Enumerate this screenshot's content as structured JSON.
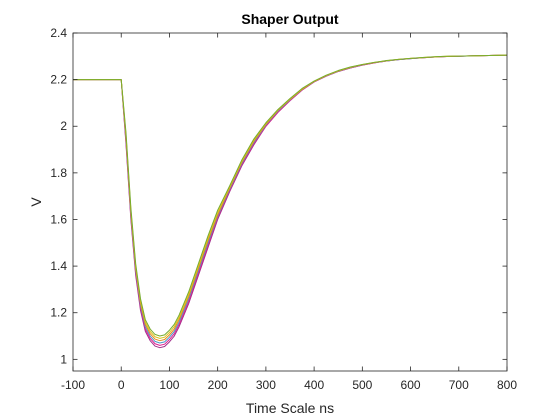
{
  "chart_data": {
    "type": "line",
    "title": "Shaper Output",
    "xlabel": "Time Scale ns",
    "ylabel": "V",
    "xlim": [
      -100,
      800
    ],
    "ylim": [
      0.95,
      2.4
    ],
    "xticks": [
      -100,
      0,
      100,
      200,
      300,
      400,
      500,
      600,
      700,
      800
    ],
    "yticks": [
      1,
      1.2,
      1.4,
      1.6,
      1.8,
      2,
      2.2,
      2.4
    ],
    "xtick_labels": [
      "-100",
      "0",
      "100",
      "200",
      "300",
      "400",
      "500",
      "600",
      "700",
      "800"
    ],
    "ytick_labels": [
      "1",
      "1.2",
      "1.4",
      "1.6",
      "1.8",
      "2",
      "2.2",
      "2.4"
    ],
    "grid": false,
    "box": true,
    "x": [
      -100,
      -50,
      0,
      10,
      20,
      30,
      40,
      50,
      60,
      70,
      80,
      90,
      100,
      110,
      120,
      140,
      160,
      180,
      200,
      225,
      250,
      275,
      300,
      325,
      350,
      375,
      400,
      425,
      450,
      475,
      500,
      525,
      550,
      575,
      600,
      625,
      650,
      675,
      700,
      725,
      750,
      775,
      800
    ],
    "series": [
      {
        "color": "#a12f8c",
        "values": [
          2.2,
          2.2,
          2.2,
          1.92,
          1.6,
          1.36,
          1.21,
          1.12,
          1.08,
          1.057,
          1.05,
          1.055,
          1.075,
          1.1,
          1.14,
          1.24,
          1.36,
          1.48,
          1.6,
          1.72,
          1.83,
          1.92,
          2.0,
          2.06,
          2.11,
          2.155,
          2.19,
          2.215,
          2.235,
          2.25,
          2.262,
          2.272,
          2.28,
          2.286,
          2.29,
          2.294,
          2.297,
          2.299,
          2.3,
          2.302,
          2.303,
          2.304,
          2.305
        ]
      },
      {
        "color": "#e0208f",
        "values": [
          2.2,
          2.2,
          2.2,
          1.93,
          1.61,
          1.37,
          1.22,
          1.13,
          1.09,
          1.067,
          1.06,
          1.065,
          1.085,
          1.11,
          1.15,
          1.25,
          1.37,
          1.49,
          1.61,
          1.725,
          1.835,
          1.925,
          2.0,
          2.06,
          2.11,
          2.155,
          2.19,
          2.215,
          2.235,
          2.25,
          2.262,
          2.272,
          2.28,
          2.286,
          2.29,
          2.294,
          2.297,
          2.299,
          2.3,
          2.302,
          2.303,
          2.304,
          2.305
        ]
      },
      {
        "color": "#4a98c9",
        "values": [
          2.2,
          2.2,
          2.2,
          1.94,
          1.62,
          1.38,
          1.23,
          1.14,
          1.1,
          1.077,
          1.07,
          1.075,
          1.095,
          1.12,
          1.16,
          1.26,
          1.38,
          1.5,
          1.615,
          1.73,
          1.84,
          1.93,
          2.005,
          2.065,
          2.113,
          2.157,
          2.191,
          2.216,
          2.236,
          2.251,
          2.263,
          2.273,
          2.28,
          2.286,
          2.29,
          2.294,
          2.297,
          2.299,
          2.3,
          2.302,
          2.303,
          2.304,
          2.305
        ]
      },
      {
        "color": "#e8891c",
        "values": [
          2.2,
          2.2,
          2.2,
          1.95,
          1.63,
          1.39,
          1.24,
          1.15,
          1.11,
          1.087,
          1.08,
          1.085,
          1.105,
          1.13,
          1.17,
          1.27,
          1.39,
          1.51,
          1.62,
          1.735,
          1.845,
          1.935,
          2.008,
          2.068,
          2.115,
          2.158,
          2.192,
          2.217,
          2.237,
          2.252,
          2.264,
          2.273,
          2.281,
          2.287,
          2.291,
          2.294,
          2.297,
          2.299,
          2.301,
          2.302,
          2.303,
          2.304,
          2.305
        ]
      },
      {
        "color": "#d9c51a",
        "values": [
          2.2,
          2.2,
          2.2,
          1.96,
          1.64,
          1.4,
          1.25,
          1.16,
          1.12,
          1.097,
          1.09,
          1.095,
          1.115,
          1.14,
          1.18,
          1.28,
          1.4,
          1.52,
          1.63,
          1.74,
          1.85,
          1.94,
          2.012,
          2.07,
          2.117,
          2.16,
          2.193,
          2.218,
          2.238,
          2.253,
          2.265,
          2.274,
          2.281,
          2.287,
          2.291,
          2.295,
          2.298,
          2.3,
          2.301,
          2.302,
          2.303,
          2.304,
          2.305
        ]
      },
      {
        "color": "#77ac30",
        "values": [
          2.2,
          2.2,
          2.2,
          1.97,
          1.65,
          1.41,
          1.26,
          1.17,
          1.13,
          1.107,
          1.1,
          1.105,
          1.125,
          1.15,
          1.19,
          1.29,
          1.41,
          1.53,
          1.64,
          1.745,
          1.855,
          1.945,
          2.015,
          2.072,
          2.119,
          2.162,
          2.194,
          2.219,
          2.239,
          2.254,
          2.265,
          2.274,
          2.282,
          2.287,
          2.291,
          2.295,
          2.298,
          2.3,
          2.301,
          2.302,
          2.303,
          2.304,
          2.305
        ]
      }
    ]
  }
}
